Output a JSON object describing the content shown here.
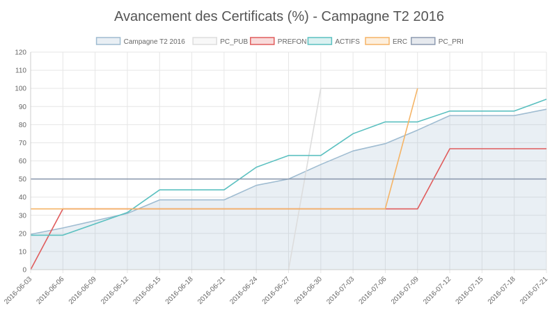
{
  "chart_data": {
    "type": "line",
    "title": "Avancement des Certificats (%) - Campagne T2 2016",
    "xlabel": "",
    "ylabel": "",
    "ylim": [
      0,
      120
    ],
    "yticks": [
      0,
      10,
      20,
      30,
      40,
      50,
      60,
      70,
      80,
      90,
      100,
      110,
      120
    ],
    "grid": true,
    "legend_position": "top",
    "x_start": "2016-06-03",
    "x_end": "2016-07-21",
    "x_ticks": [
      "2016-06-03",
      "2016-06-06",
      "2016-06-09",
      "2016-06-12",
      "2016-06-15",
      "2016-06-18",
      "2016-06-21",
      "2016-06-24",
      "2016-06-27",
      "2016-06-30",
      "2016-07-03",
      "2016-07-06",
      "2016-07-09",
      "2016-07-12",
      "2016-07-15",
      "2016-07-18",
      "2016-07-21"
    ],
    "series": [
      {
        "name": "Campagne T2 2016",
        "color": "#9fbcd1",
        "fill": "rgba(155,184,205,0.22)",
        "area": true,
        "points": [
          [
            "2016-06-03",
            19.5
          ],
          [
            "2016-06-06",
            23
          ],
          [
            "2016-06-12",
            31
          ],
          [
            "2016-06-15",
            38.5
          ],
          [
            "2016-06-21",
            38.5
          ],
          [
            "2016-06-24",
            46.5
          ],
          [
            "2016-06-27",
            50
          ],
          [
            "2016-06-30",
            58
          ],
          [
            "2016-07-03",
            65.5
          ],
          [
            "2016-07-06",
            69.5
          ],
          [
            "2016-07-09",
            77
          ],
          [
            "2016-07-12",
            85
          ],
          [
            "2016-07-18",
            85
          ],
          [
            "2016-07-21",
            88.5
          ]
        ]
      },
      {
        "name": "PC_PUB",
        "color": "#dddddd",
        "points": [
          [
            "2016-06-27",
            0
          ],
          [
            "2016-06-30",
            100
          ],
          [
            "2016-07-21",
            100
          ]
        ]
      },
      {
        "name": "PREFON",
        "color": "#e05c5c",
        "points": [
          [
            "2016-06-03",
            0
          ],
          [
            "2016-06-06",
            33.5
          ],
          [
            "2016-07-09",
            33.5
          ],
          [
            "2016-07-12",
            66.7
          ],
          [
            "2016-07-21",
            66.7
          ]
        ]
      },
      {
        "name": "ACTIFS",
        "color": "#5bc0c0",
        "points": [
          [
            "2016-06-03",
            19
          ],
          [
            "2016-06-06",
            19
          ],
          [
            "2016-06-12",
            31.5
          ],
          [
            "2016-06-15",
            44
          ],
          [
            "2016-06-21",
            44
          ],
          [
            "2016-06-24",
            56.5
          ],
          [
            "2016-06-27",
            63
          ],
          [
            "2016-06-30",
            63
          ],
          [
            "2016-07-03",
            75
          ],
          [
            "2016-07-06",
            81.5
          ],
          [
            "2016-07-09",
            81.5
          ],
          [
            "2016-07-12",
            87.5
          ],
          [
            "2016-07-18",
            87.5
          ],
          [
            "2016-07-21",
            94
          ]
        ]
      },
      {
        "name": "ERC",
        "color": "#f5b466",
        "points": [
          [
            "2016-06-03",
            33.5
          ],
          [
            "2016-06-06",
            33.5
          ],
          [
            "2016-07-06",
            33.5
          ],
          [
            "2016-07-09",
            100
          ]
        ]
      },
      {
        "name": "PC_PRI",
        "color": "#8d9bb0",
        "points": [
          [
            "2016-06-03",
            50
          ],
          [
            "2016-07-21",
            50
          ]
        ]
      }
    ]
  }
}
